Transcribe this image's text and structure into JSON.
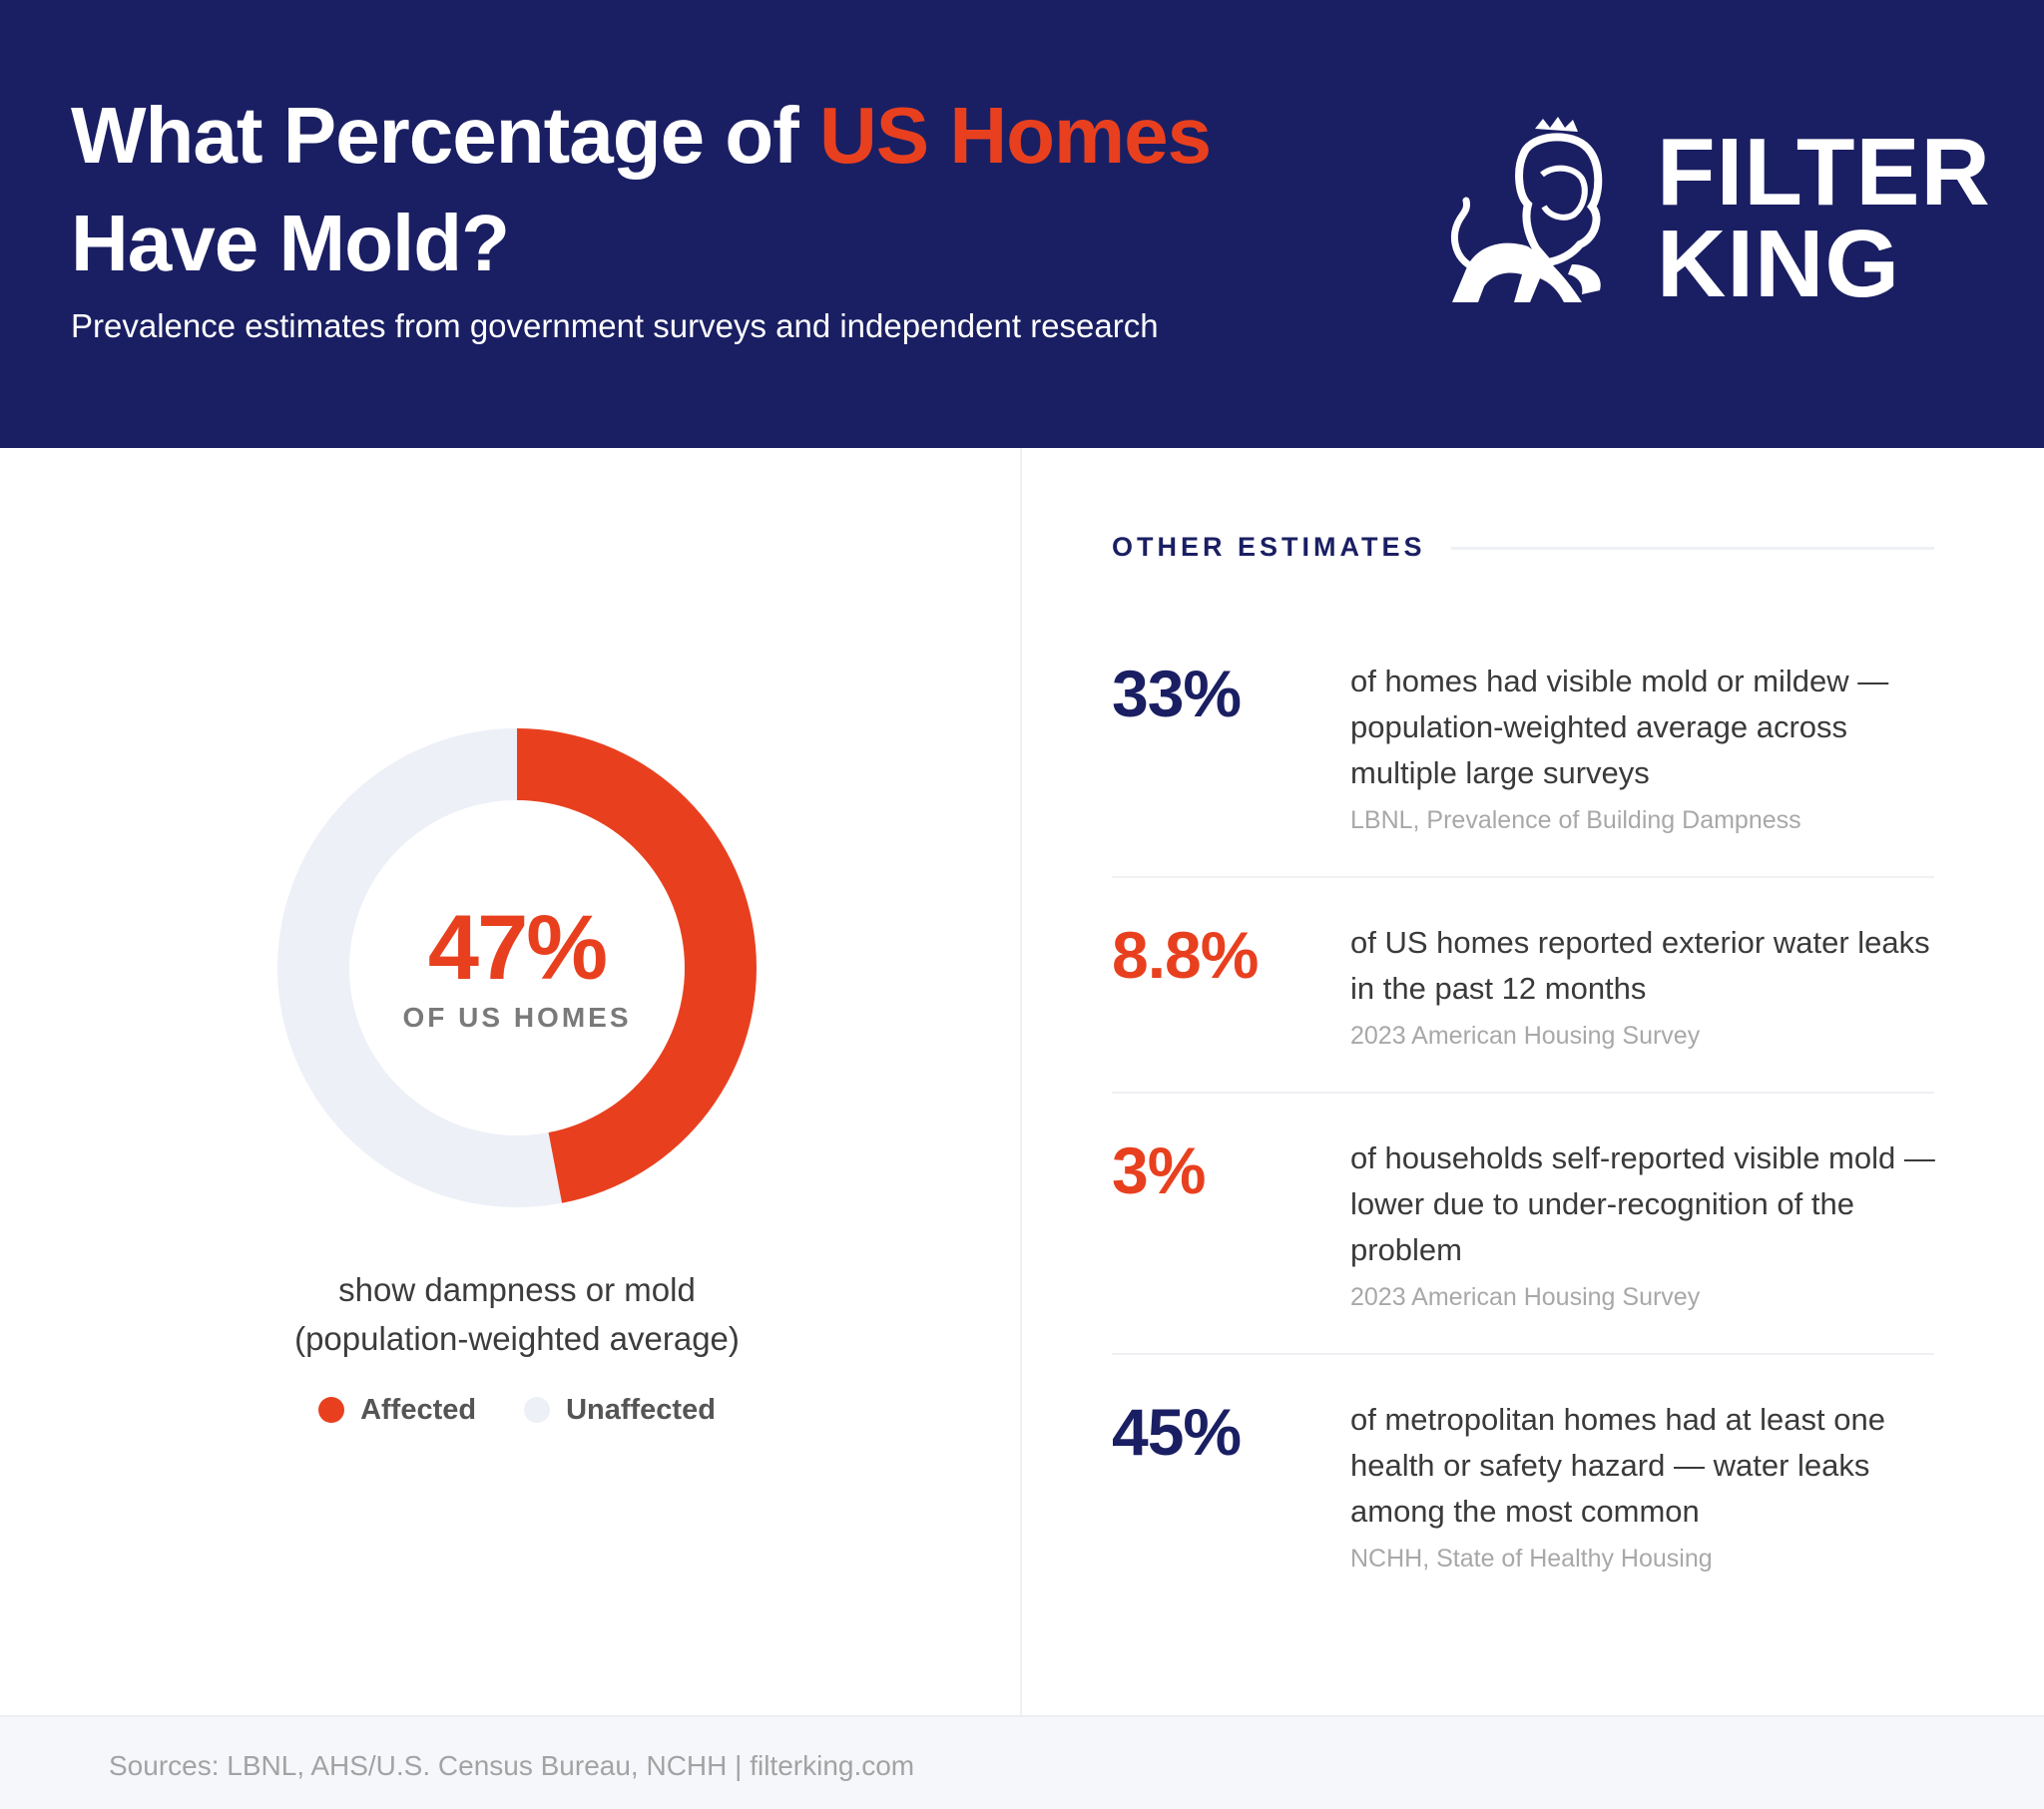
{
  "header": {
    "title_part1": "What Percentage of ",
    "title_accent": "US Homes",
    "title_part2": "Have Mold?",
    "subtitle": "Prevalence estimates from government surveys and independent research",
    "logo_line1": "FILTER",
    "logo_line2": "KING",
    "logo_icon": "lion-icon"
  },
  "colors": {
    "navy": "#1a1f63",
    "accent": "#e8401f",
    "unaffected": "#eef0f8"
  },
  "chart_data": {
    "type": "pie",
    "donut": true,
    "categories": [
      "Affected",
      "Unaffected"
    ],
    "values": [
      47,
      53
    ],
    "colors": [
      "#e8401f",
      "#eef0f8"
    ],
    "center_value": "47%",
    "center_label": "OF US HOMES",
    "caption_line1": "show dampness or mold",
    "caption_line2": "(population-weighted average)",
    "legend": [
      "Affected",
      "Unaffected"
    ],
    "legend_position": "bottom"
  },
  "other_estimates": {
    "heading": "OTHER ESTIMATES",
    "items": [
      {
        "value": "33%",
        "color": "navy",
        "description": "of homes had visible mold or mildew — population-weighted average across multiple large surveys",
        "source": "LBNL, Prevalence of Building Dampness"
      },
      {
        "value": "8.8%",
        "color": "red",
        "description": "of US homes reported exterior water leaks in the past 12 months",
        "source": "2023 American Housing Survey"
      },
      {
        "value": "3%",
        "color": "red",
        "description": "of households self-reported visible mold — lower due to under-recognition of the problem",
        "source": "2023 American Housing Survey"
      },
      {
        "value": "45%",
        "color": "navy",
        "description": "of metropolitan homes had at least one health or safety hazard — water leaks among the most common",
        "source": "NCHH, State of Healthy Housing"
      }
    ]
  },
  "footer": {
    "text": "Sources: LBNL, AHS/U.S. Census Bureau, NCHH | filterking.com"
  }
}
